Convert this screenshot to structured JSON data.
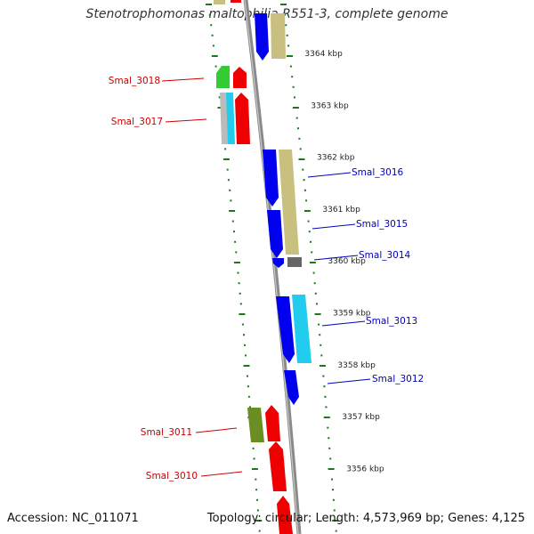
{
  "title": "Stenotrophomonas maltophilia R551-3, complete genome",
  "footer": {
    "accession": "Accession: NC_011071",
    "topology": "Topology: circular; Length: 4,573,969 bp; Genes: 4,125"
  },
  "colors": {
    "backbone": "#8a8a8a",
    "tick": "#1a7a1a",
    "forward_label": "#0000bb",
    "reverse_label": "#cc0000",
    "blue": "#0000ee",
    "khaki": "#c9c07f",
    "red": "#ee0000",
    "green": "#33cc33",
    "cyan": "#22ccee",
    "gray": "#888888",
    "olive": "#6b8e23",
    "darkgray": "#666666",
    "lightgray": "#bbbbbb"
  },
  "ruler": {
    "labels": [
      {
        "text": "3364 kbp",
        "kbp": 3364
      },
      {
        "text": "3363 kbp",
        "kbp": 3363
      },
      {
        "text": "3362 kbp",
        "kbp": 3362
      },
      {
        "text": "3361 kbp",
        "kbp": 3361
      },
      {
        "text": "3360 kbp",
        "kbp": 3360
      },
      {
        "text": "3359 kbp",
        "kbp": 3359
      },
      {
        "text": "3358 kbp",
        "kbp": 3358
      },
      {
        "text": "3357 kbp",
        "kbp": 3357
      },
      {
        "text": "3356 kbp",
        "kbp": 3356
      }
    ]
  },
  "genes": [
    {
      "name": "Smal_3018",
      "strand": "reverse",
      "color": "green",
      "label": true
    },
    {
      "name": "Smal_3017",
      "strand": "reverse",
      "color": "cyan",
      "label": true
    },
    {
      "name": "Smal_3016",
      "strand": "forward",
      "color": "khaki",
      "label": true
    },
    {
      "name": "Smal_3015",
      "strand": "forward",
      "color": "blue",
      "label": true
    },
    {
      "name": "Smal_3014",
      "strand": "forward",
      "color": "darkgray",
      "label": true
    },
    {
      "name": "Smal_3013",
      "strand": "forward",
      "color": "cyan",
      "label": true
    },
    {
      "name": "Smal_3012",
      "strand": "forward",
      "color": "blue",
      "label": true
    },
    {
      "name": "Smal_3011",
      "strand": "reverse",
      "color": "olive",
      "label": true
    },
    {
      "name": "Smal_3010",
      "strand": "reverse",
      "color": "red",
      "label": true
    }
  ]
}
